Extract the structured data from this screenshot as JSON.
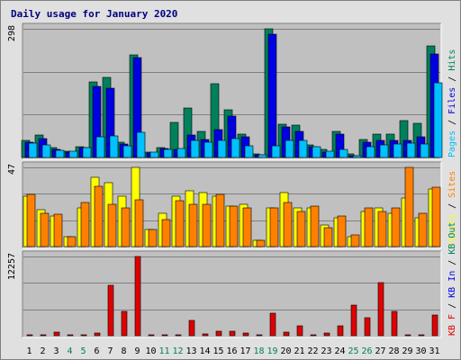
{
  "chart_data": {
    "type": "bar",
    "title": "Daily usage for January 2020",
    "days": [
      "1",
      "2",
      "3",
      "4",
      "5",
      "6",
      "7",
      "8",
      "9",
      "10",
      "11",
      "12",
      "13",
      "14",
      "15",
      "16",
      "17",
      "18",
      "19",
      "20",
      "21",
      "22",
      "23",
      "24",
      "25",
      "26",
      "27",
      "28",
      "29",
      "30",
      "31"
    ],
    "weekend_days": [
      "4",
      "5",
      "11",
      "12",
      "18",
      "19",
      "25",
      "26"
    ],
    "colors": {
      "title": "#000080",
      "plot_bg": "#c0c0c0",
      "frame_bg": "#e0e0e0",
      "weekday_label": "#000000",
      "weekend_label": "#00805c",
      "hits": "#00805c",
      "files": "#0000e0",
      "pages": "#00c0ff",
      "visits": "#ffff00",
      "sites": "#ff8000",
      "kb_in": "#0000e0",
      "kb_out": "#00805c",
      "kb_f": "#e00000"
    },
    "panels": [
      {
        "id": "top",
        "ymax_label": "298",
        "ymax": 298,
        "right_label": [
          {
            "text": "Pages",
            "color_key": "pages"
          },
          {
            "text": " / ",
            "color_key": "weekday_label"
          },
          {
            "text": "Files",
            "color_key": "files"
          },
          {
            "text": " / ",
            "color_key": "weekday_label"
          },
          {
            "text": "Hits",
            "color_key": "hits"
          }
        ],
        "series": [
          {
            "name": "Hits",
            "color_key": "hits",
            "values": [
              40,
              52,
              22,
              15,
              25,
              175,
              186,
              36,
              238,
              12,
              22,
              82,
              115,
              60,
              170,
              110,
              55,
              8,
              298,
              78,
              75,
              30,
              18,
              60,
              8,
              42,
              55,
              55,
              85,
              79,
              258
            ]
          },
          {
            "name": "Files",
            "color_key": "files",
            "values": [
              36,
              44,
              18,
              12,
              22,
              165,
              160,
              32,
              232,
              10,
              20,
              18,
              52,
              42,
              65,
              95,
              48,
              6,
              285,
              70,
              60,
              25,
              12,
              55,
              5,
              35,
              40,
              40,
              40,
              48,
              240
            ]
          },
          {
            "name": "Pages",
            "color_key": "pages",
            "values": [
              33,
              30,
              17,
              14,
              22,
              48,
              50,
              27,
              58,
              12,
              18,
              21,
              40,
              35,
              40,
              43,
              27,
              6,
              28,
              40,
              39,
              25,
              14,
              18,
              5,
              25,
              29,
              32,
              34,
              32,
              172
            ]
          }
        ]
      },
      {
        "id": "middle",
        "ymax_label": "47",
        "ymax": 47,
        "right_label": [
          {
            "text": "Visits",
            "color_key": "visits"
          },
          {
            "text": " / ",
            "color_key": "weekday_label"
          },
          {
            "text": "Sites",
            "color_key": "sites"
          }
        ],
        "series": [
          {
            "name": "Visits",
            "color_key": "visits",
            "values": [
              30,
              22,
              18,
              6,
              23,
              41,
              38,
              30,
              47,
              10,
              20,
              30,
              33,
              32,
              30,
              24,
              25,
              4,
              23,
              32,
              23,
              23,
              13,
              17,
              6,
              21,
              23,
              20,
              29,
              17,
              34
            ]
          },
          {
            "name": "Sites",
            "color_key": "sites",
            "values": [
              31,
              20,
              19,
              6,
              26,
              36,
              25,
              23,
              28,
              10,
              16,
              27,
              25,
              25,
              31,
              24,
              23,
              4,
              23,
              26,
              21,
              24,
              11,
              18,
              7,
              23,
              21,
              23,
              47,
              20,
              35
            ]
          }
        ]
      },
      {
        "id": "bottom",
        "ymax_label": "12257",
        "ymax": 12257,
        "right_label": [
          {
            "text": "KB F",
            "color_key": "kb_f"
          },
          {
            "text": " / ",
            "color_key": "weekday_label"
          },
          {
            "text": "KB In",
            "color_key": "kb_in"
          },
          {
            "text": " / ",
            "color_key": "weekday_label"
          },
          {
            "text": "KB Out",
            "color_key": "kb_out"
          }
        ],
        "series": [
          {
            "name": "KB F",
            "color_key": "kb_f",
            "values": [
              150,
              130,
              500,
              100,
              110,
              350,
              7800,
              3700,
              12257,
              130,
              150,
              150,
              2400,
              300,
              700,
              700,
              350,
              110,
              3500,
              600,
              1500,
              200,
              350,
              1500,
              4700,
              2800,
              8200,
              3800,
              110,
              100,
              3200
            ]
          }
        ]
      }
    ]
  }
}
